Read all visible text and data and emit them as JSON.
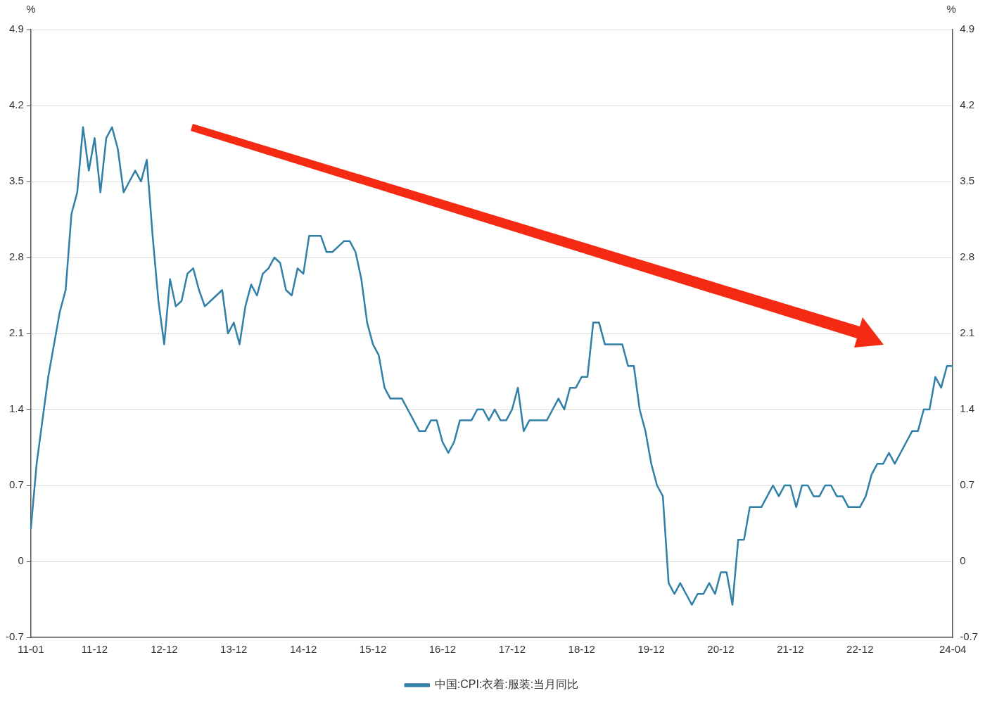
{
  "chart_data": {
    "type": "line",
    "ylabel": "%",
    "y2label": "%",
    "categories": [
      "11-01",
      null,
      null,
      null,
      null,
      null,
      null,
      null,
      null,
      null,
      null,
      "11-12",
      null,
      null,
      null,
      null,
      null,
      null,
      null,
      null,
      null,
      null,
      null,
      "12-12",
      null,
      null,
      null,
      null,
      null,
      null,
      null,
      null,
      null,
      null,
      null,
      "13-12",
      null,
      null,
      null,
      null,
      null,
      null,
      null,
      null,
      null,
      null,
      null,
      "14-12",
      null,
      null,
      null,
      null,
      null,
      null,
      null,
      null,
      null,
      null,
      null,
      "15-12",
      null,
      null,
      null,
      null,
      null,
      null,
      null,
      null,
      null,
      null,
      null,
      "16-12",
      null,
      null,
      null,
      null,
      null,
      null,
      null,
      null,
      null,
      null,
      null,
      "17-12",
      null,
      null,
      null,
      null,
      null,
      null,
      null,
      null,
      null,
      null,
      null,
      "18-12",
      null,
      null,
      null,
      null,
      null,
      null,
      null,
      null,
      null,
      null,
      null,
      "19-12",
      null,
      null,
      null,
      null,
      null,
      null,
      null,
      null,
      null,
      null,
      null,
      "20-12",
      null,
      null,
      null,
      null,
      null,
      null,
      null,
      null,
      null,
      null,
      null,
      "21-12",
      null,
      null,
      null,
      null,
      null,
      null,
      null,
      null,
      null,
      null,
      null,
      "22-12",
      null,
      null,
      null,
      null,
      null,
      null,
      null,
      null,
      null,
      null,
      null,
      null,
      null,
      null,
      null,
      "24-04"
    ],
    "series": [
      {
        "name": "中国:CPI:衣着:服装:当月同比",
        "color": "#2f7fa7",
        "values": [
          0.3,
          0.9,
          1.3,
          1.7,
          2.0,
          2.3,
          2.5,
          3.2,
          3.4,
          4.0,
          3.6,
          3.9,
          3.4,
          3.9,
          4.0,
          3.8,
          3.4,
          3.5,
          3.6,
          3.5,
          3.7,
          3.0,
          2.4,
          2.0,
          2.6,
          2.35,
          2.4,
          2.65,
          2.7,
          2.5,
          2.35,
          2.4,
          2.45,
          2.5,
          2.1,
          2.2,
          2.0,
          2.35,
          2.55,
          2.45,
          2.65,
          2.7,
          2.8,
          2.75,
          2.5,
          2.45,
          2.7,
          2.65,
          3.0,
          3.0,
          3.0,
          2.85,
          2.85,
          2.9,
          2.95,
          2.95,
          2.85,
          2.6,
          2.2,
          2.0,
          1.9,
          1.6,
          1.5,
          1.5,
          1.5,
          1.4,
          1.3,
          1.2,
          1.2,
          1.3,
          1.3,
          1.1,
          1.0,
          1.1,
          1.3,
          1.3,
          1.3,
          1.4,
          1.4,
          1.3,
          1.4,
          1.3,
          1.3,
          1.4,
          1.6,
          1.2,
          1.3,
          1.3,
          1.3,
          1.3,
          1.4,
          1.5,
          1.4,
          1.6,
          1.6,
          1.7,
          1.7,
          2.2,
          2.2,
          2.0,
          2.0,
          2.0,
          2.0,
          1.8,
          1.8,
          1.4,
          1.2,
          0.9,
          0.7,
          0.6,
          -0.2,
          -0.3,
          -0.2,
          -0.3,
          -0.4,
          -0.3,
          -0.3,
          -0.2,
          -0.3,
          -0.1,
          -0.1,
          -0.4,
          0.2,
          0.2,
          0.5,
          0.5,
          0.5,
          0.6,
          0.7,
          0.6,
          0.7,
          0.7,
          0.5,
          0.7,
          0.7,
          0.6,
          0.6,
          0.7,
          0.7,
          0.6,
          0.6,
          0.5,
          0.5,
          0.5,
          0.6,
          0.8,
          0.9,
          0.9,
          1.0,
          0.9,
          1.0,
          1.1,
          1.2,
          1.2,
          1.4,
          1.4,
          1.7,
          1.6,
          1.8,
          1.8
        ]
      }
    ],
    "ylim": [
      -0.7,
      4.9
    ],
    "yticks": [
      -0.7,
      0,
      0.7,
      1.4,
      2.1,
      2.8,
      3.5,
      4.2,
      4.9
    ],
    "y2lim": [
      -0.7,
      4.9
    ],
    "y2ticks": [
      -0.7,
      0,
      0.7,
      1.4,
      2.1,
      2.8,
      3.5,
      4.2,
      4.9
    ],
    "grid": "y",
    "legend": "bottom",
    "marker": "none",
    "line_style": "solid"
  }
}
